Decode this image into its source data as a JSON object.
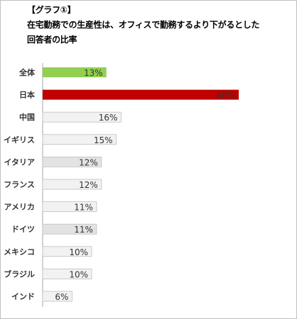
{
  "chart_data": {
    "type": "bar",
    "orientation": "horizontal",
    "title_lines": [
      "【グラフ①】",
      "在宅勤務での生産性は、オフィスで勤務するより下がるとした",
      "回答者の比率"
    ],
    "categories": [
      "全体",
      "日本",
      "中国",
      "イギリス",
      "イタリア",
      "フランス",
      "アメリカ",
      "ドイツ",
      "メキシコ",
      "ブラジル",
      "インド"
    ],
    "values": [
      13,
      40,
      16,
      15,
      12,
      12,
      11,
      11,
      10,
      10,
      6
    ],
    "value_labels": [
      "13%",
      "40%",
      "16%",
      "15%",
      "12%",
      "12%",
      "11%",
      "11%",
      "10%",
      "10%",
      "6%"
    ],
    "bar_colors": [
      "#92d050",
      "#c00000",
      "#f2f2f2",
      "#f2f2f2",
      "#e3e3e3",
      "#f2f2f2",
      "#f2f2f2",
      "#e3e3e3",
      "#f2f2f2",
      "#f2f2f2",
      "#f2f2f2"
    ],
    "label_colors": [
      "#333333",
      "#ffffff",
      "#333333",
      "#333333",
      "#333333",
      "#333333",
      "#333333",
      "#333333",
      "#333333",
      "#333333",
      "#333333"
    ],
    "bar_border_color": "#bfbfbf",
    "axis_color": "#a6a6a6",
    "xlim": [
      0,
      40
    ],
    "grid": false,
    "legend": "none"
  }
}
